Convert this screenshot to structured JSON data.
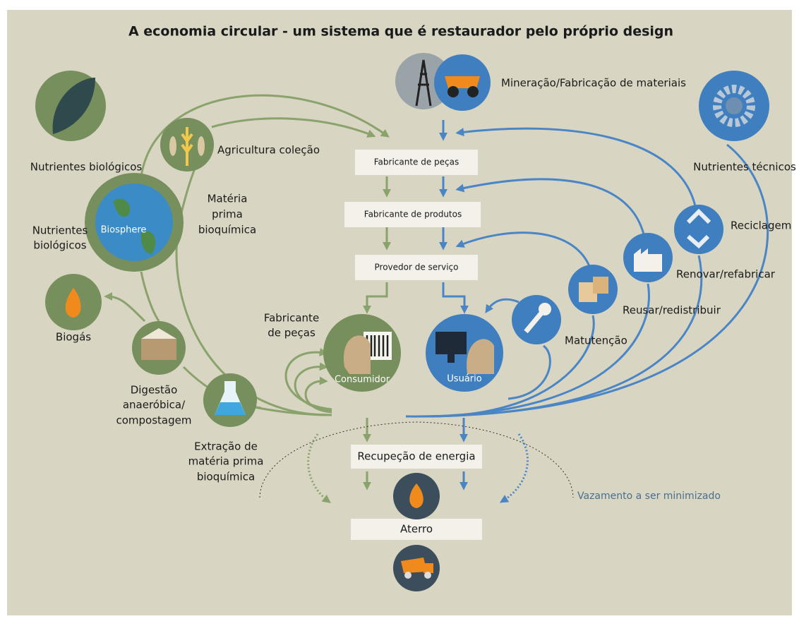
{
  "title": "A economia circular - um sistema que é restaurador pelo próprio design",
  "biological": {
    "nutrients_top": "Nutrientes biológicos",
    "nutrients_side": [
      "Nutrientes",
      "biológicos"
    ],
    "biosphere": "Biosphere",
    "agriculture": "Agricultura coleção",
    "feedstock": [
      "Matéria",
      "prima",
      "bioquímica"
    ],
    "biogas": "Biogás",
    "digestion": [
      "Digestão",
      "anaeróbica/",
      "compostagem"
    ],
    "extraction": [
      "Extração de",
      "matéria prima",
      "bioquímica"
    ],
    "parts_maker": [
      "Fabricante",
      "de peças"
    ],
    "consumer": "Consumidor"
  },
  "flow": {
    "boxes": [
      "Fabricante de peças",
      "Fabricante de produtos",
      "Provedor de serviço"
    ],
    "energy_recovery": "Recupeção de energia",
    "landfill": "Aterro"
  },
  "technical": {
    "mining": "Mineração/Fabricação de materiais",
    "nutrients": "Nutrientes técnicos",
    "recycling": "Reciclagem",
    "refurbish": "Renovar/refabricar",
    "reuse": "Reusar/redistribuir",
    "maintenance": "Matutenção",
    "user": "Usuário"
  },
  "leakage": "Vazamento a ser minimizado"
}
